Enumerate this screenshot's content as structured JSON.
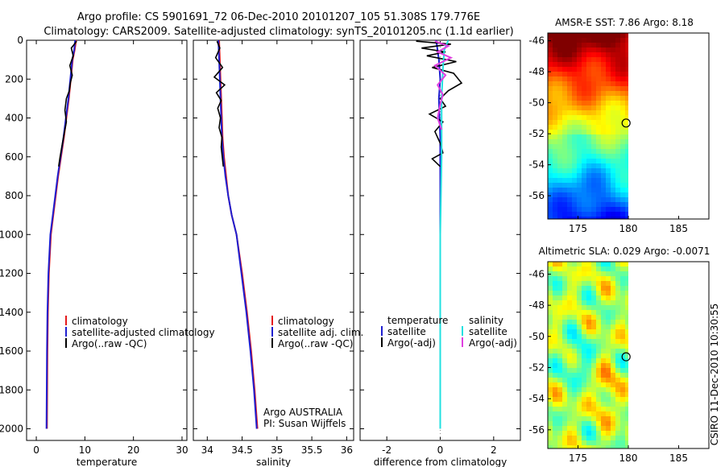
{
  "title_line1": "Argo profile: CS 5901691_72 06-Dec-2010 20101207_105 51.308S 179.776E",
  "title_line2": "Climatology: CARS2009. Satellite-adjusted climatology: synTS_20101205.nc (1.1d earlier)",
  "side_stamp": "CSIRO 11-Dec-2010 10:30:55",
  "colors": {
    "red": "#e41a1c",
    "blue": "#1f1fd0",
    "black": "#000000",
    "cyan": "#22e0e0",
    "magenta": "#e040e0"
  },
  "chart_data": [
    {
      "id": "temperature",
      "type": "line",
      "xlabel": "temperature",
      "xlim": [
        -2,
        31
      ],
      "ylim": [
        2060,
        0
      ],
      "xticks": [
        0,
        10,
        20,
        30
      ],
      "yticks": [
        0,
        200,
        400,
        600,
        800,
        1000,
        1200,
        1400,
        1600,
        1800,
        2000
      ],
      "legend": [
        "climatology",
        "satellite-adjusted climatology",
        "Argo(..raw -QC)"
      ],
      "series": [
        {
          "name": "climatology",
          "color": "red",
          "x": [
            8.2,
            7.9,
            7.5,
            7.1,
            6.7,
            6.2,
            5.7,
            5.1,
            4.5,
            4.0,
            3.5,
            3.0,
            2.6,
            2.4,
            2.3,
            2.2
          ],
          "y": [
            0,
            50,
            100,
            200,
            300,
            400,
            500,
            600,
            700,
            800,
            900,
            1000,
            1200,
            1400,
            1600,
            2000
          ]
        },
        {
          "name": "satellite-adjusted climatology",
          "color": "blue",
          "x": [
            8.0,
            7.8,
            7.4,
            7.0,
            6.6,
            6.1,
            5.6,
            5.0,
            4.4,
            3.9,
            3.4,
            2.9,
            2.5,
            2.3,
            2.2,
            2.1
          ],
          "y": [
            0,
            50,
            100,
            200,
            300,
            400,
            500,
            600,
            700,
            800,
            900,
            1000,
            1200,
            1400,
            1600,
            2000
          ]
        },
        {
          "name": "Argo(..raw -QC)",
          "color": "black",
          "x": [
            8.3,
            7.2,
            7.6,
            6.9,
            7.4,
            7.0,
            6.8,
            6.2,
            5.9,
            6.2,
            5.6,
            4.9,
            4.6
          ],
          "y": [
            5,
            40,
            80,
            130,
            180,
            220,
            260,
            300,
            360,
            420,
            500,
            600,
            650
          ]
        }
      ]
    },
    {
      "id": "salinity",
      "type": "line",
      "xlabel": "salinity",
      "xlim": [
        33.8,
        36.1
      ],
      "ylim": [
        2060,
        0
      ],
      "xticks": [
        34,
        34.5,
        35,
        35.5,
        36
      ],
      "xtick_labels": [
        "34",
        "34.5",
        "35",
        "35.5",
        "36"
      ],
      "legend": [
        "climatology",
        "satellite adj. clim.",
        "Argo(..raw -QC)"
      ],
      "annotation": [
        "Argo AUSTRALIA",
        "PI: Susan Wijffels"
      ],
      "series": [
        {
          "name": "climatology",
          "color": "red",
          "x": [
            34.17,
            34.18,
            34.19,
            34.2,
            34.21,
            34.22,
            34.24,
            34.27,
            34.3,
            34.35,
            34.42,
            34.5,
            34.57,
            34.63,
            34.68,
            34.72
          ],
          "y": [
            0,
            100,
            200,
            300,
            400,
            500,
            600,
            700,
            800,
            900,
            1000,
            1200,
            1400,
            1600,
            1800,
            2000
          ]
        },
        {
          "name": "satellite adj. clim.",
          "color": "blue",
          "x": [
            34.16,
            34.17,
            34.18,
            34.19,
            34.2,
            34.21,
            34.23,
            34.26,
            34.3,
            34.35,
            34.42,
            34.49,
            34.56,
            34.62,
            34.67,
            34.71
          ],
          "y": [
            0,
            100,
            200,
            300,
            400,
            500,
            600,
            700,
            800,
            900,
            1000,
            1200,
            1400,
            1600,
            1800,
            2000
          ]
        },
        {
          "name": "Argo(..raw -QC)",
          "color": "black",
          "x": [
            34.14,
            34.18,
            34.12,
            34.22,
            34.1,
            34.25,
            34.13,
            34.2,
            34.15,
            34.19,
            34.17,
            34.21,
            34.2,
            34.23
          ],
          "y": [
            5,
            40,
            90,
            140,
            190,
            230,
            270,
            310,
            350,
            400,
            450,
            500,
            550,
            650
          ]
        }
      ]
    },
    {
      "id": "difference",
      "type": "line",
      "xlabel": "difference from climatology",
      "xlim": [
        -3,
        3
      ],
      "ylim": [
        2060,
        0
      ],
      "xticks": [
        -2,
        0,
        2
      ],
      "legend_headers": [
        "temperature",
        "salinity"
      ],
      "legend_left": [
        "satellite",
        "Argo(-adj)"
      ],
      "legend_right": [
        "satellite",
        "Argo(-adj)"
      ],
      "series": [
        {
          "name": "temperature satellite",
          "color": "blue",
          "x": [
            -0.15,
            -0.05,
            0.0,
            -0.05,
            0.0,
            0.0,
            0.0
          ],
          "y": [
            0,
            100,
            200,
            300,
            500,
            1000,
            2000
          ]
        },
        {
          "name": "temperature Argo(-adj)",
          "color": "black",
          "x": [
            -0.9,
            0.4,
            -0.7,
            0.2,
            -0.5,
            0.6,
            -0.3,
            0.5,
            0.8,
            0.3,
            0.0,
            0.2,
            -0.4,
            0.1,
            -0.2,
            0.0,
            0.1,
            -0.3,
            0.0
          ],
          "y": [
            5,
            20,
            40,
            60,
            80,
            110,
            140,
            170,
            220,
            260,
            300,
            340,
            380,
            420,
            470,
            530,
            580,
            610,
            650
          ]
        },
        {
          "name": "salinity satellite",
          "color": "cyan",
          "x": [
            0.3,
            0.15,
            0.1,
            0.05,
            0.05,
            0.0,
            0.0,
            0.0
          ],
          "y": [
            0,
            50,
            150,
            300,
            600,
            1000,
            1500,
            2000
          ]
        },
        {
          "name": "salinity Argo(-adj)",
          "color": "magenta",
          "x": [
            -0.2,
            0.3,
            -0.1,
            0.4,
            -0.2,
            0.2,
            -0.1,
            0.1,
            0.0,
            -0.1,
            0.05
          ],
          "y": [
            5,
            30,
            60,
            90,
            130,
            180,
            230,
            280,
            330,
            400,
            460
          ]
        }
      ]
    },
    {
      "id": "sst_map",
      "type": "heatmap",
      "title": "AMSR-E SST: 7.86 Argo: 8.18",
      "xlim": [
        172,
        188
      ],
      "ylim": [
        -57.5,
        -45.5
      ],
      "xticks": [
        175,
        180,
        185
      ],
      "yticks": [
        -46,
        -48,
        -50,
        -52,
        -54,
        -56
      ],
      "marker": {
        "lon": 179.776,
        "lat": -51.308
      },
      "data_lon_max": 180
    },
    {
      "id": "sla_map",
      "type": "heatmap",
      "title": "Altimetric SLA: 0.029 Argo: -0.0071",
      "xlim": [
        172,
        188
      ],
      "ylim": [
        -57.2,
        -45.2
      ],
      "xticks": [
        175,
        180,
        185
      ],
      "yticks": [
        -46,
        -48,
        -50,
        -52,
        -54,
        -56
      ],
      "marker": {
        "lon": 179.776,
        "lat": -51.308
      },
      "data_lon_max": 180
    }
  ]
}
